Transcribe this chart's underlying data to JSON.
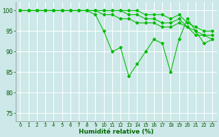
{
  "xlabel": "Humidité relative (%)",
  "background_color": "#cce8e8",
  "grid_color": "#ffffff",
  "line_color": "#00bb00",
  "xlim": [
    -0.5,
    23.5
  ],
  "ylim": [
    73,
    102
  ],
  "yticks": [
    75,
    80,
    85,
    90,
    95,
    100
  ],
  "xticks": [
    0,
    1,
    2,
    3,
    4,
    5,
    6,
    7,
    8,
    9,
    10,
    11,
    12,
    13,
    14,
    15,
    16,
    17,
    18,
    19,
    20,
    21,
    22,
    23
  ],
  "series": [
    [
      100,
      100,
      100,
      100,
      100,
      100,
      100,
      100,
      100,
      99,
      95,
      90,
      91,
      84,
      87,
      90,
      93,
      92,
      85,
      93,
      98,
      95,
      92,
      93
    ],
    [
      100,
      100,
      100,
      100,
      100,
      100,
      100,
      100,
      100,
      100,
      99,
      99,
      98,
      98,
      97,
      97,
      97,
      96,
      96,
      97,
      96,
      94,
      94,
      93
    ],
    [
      100,
      100,
      100,
      100,
      100,
      100,
      100,
      100,
      100,
      100,
      100,
      100,
      100,
      99,
      99,
      98,
      98,
      97,
      97,
      98,
      96,
      95,
      94,
      94
    ],
    [
      100,
      100,
      100,
      100,
      100,
      100,
      100,
      100,
      100,
      100,
      100,
      100,
      100,
      100,
      100,
      99,
      99,
      99,
      98,
      99,
      97,
      96,
      95,
      95
    ]
  ]
}
